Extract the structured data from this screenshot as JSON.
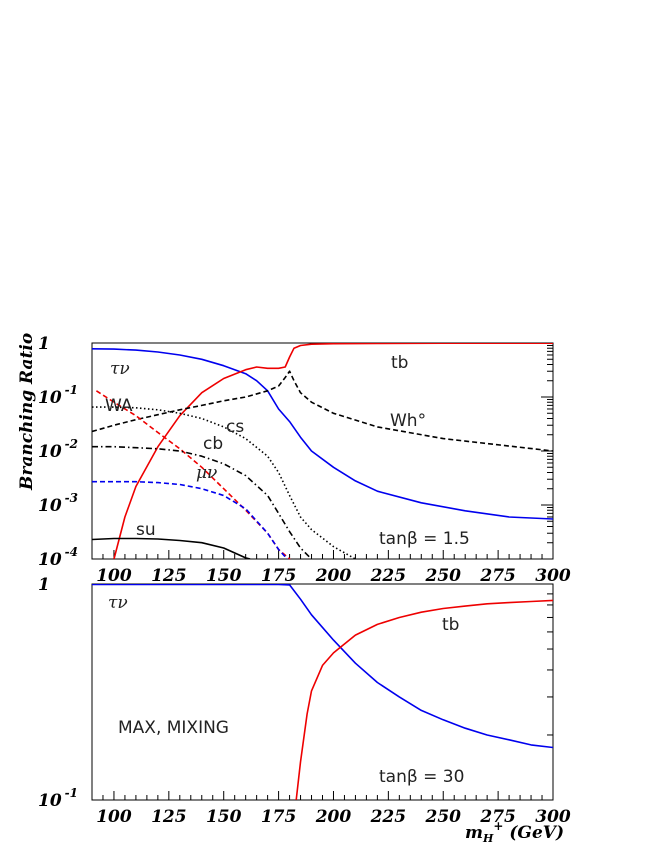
{
  "chart_data": [
    {
      "type": "line",
      "ylabel": "Branching Ratio",
      "y_scale": "log",
      "ylim": [
        0.0001,
        1
      ],
      "xlim": [
        90,
        300
      ],
      "x_ticks": [
        "100",
        "125",
        "150",
        "175",
        "200",
        "225",
        "250",
        "275",
        "300"
      ],
      "y_ticks": [
        {
          "base": "1",
          "exp": ""
        },
        {
          "base": "10",
          "exp": "-1"
        },
        {
          "base": "10",
          "exp": "-2"
        },
        {
          "base": "10",
          "exp": "-3"
        },
        {
          "base": "10",
          "exp": "-4"
        }
      ],
      "annotations": [
        "τν",
        "WA",
        "cb",
        "cs",
        "μν",
        "su",
        "tb",
        "Wh°",
        "tanβ = 1.5"
      ],
      "series": [
        {
          "name": "τν",
          "color": "#0000ee",
          "style": "solid",
          "x": [
            90,
            100,
            110,
            120,
            130,
            140,
            150,
            160,
            165,
            170,
            175,
            180,
            185,
            190,
            200,
            210,
            220,
            240,
            260,
            280,
            300
          ],
          "y": [
            0.78,
            0.77,
            0.74,
            0.68,
            0.6,
            0.5,
            0.38,
            0.27,
            0.2,
            0.13,
            0.06,
            0.035,
            0.018,
            0.01,
            0.005,
            0.0028,
            0.0018,
            0.0011,
            0.00078,
            0.0006,
            0.00055
          ]
        },
        {
          "name": "tb",
          "color": "#ee0000",
          "style": "solid",
          "x": [
            100,
            105,
            110,
            120,
            130,
            140,
            150,
            160,
            165,
            170,
            175,
            178,
            180,
            182,
            185,
            190,
            200,
            220,
            250,
            300
          ],
          "y": [
            0.0001,
            0.0006,
            0.0022,
            0.012,
            0.045,
            0.12,
            0.22,
            0.32,
            0.36,
            0.34,
            0.34,
            0.36,
            0.55,
            0.8,
            0.9,
            0.95,
            0.97,
            0.98,
            0.99,
            0.99
          ]
        },
        {
          "name": "Wh°",
          "color": "#000000",
          "style": "dashed",
          "x": [
            90,
            100,
            110,
            120,
            130,
            140,
            150,
            160,
            170,
            175,
            178,
            180,
            182,
            185,
            190,
            200,
            220,
            250,
            300
          ],
          "y": [
            0.023,
            0.03,
            0.038,
            0.047,
            0.058,
            0.07,
            0.085,
            0.1,
            0.13,
            0.16,
            0.23,
            0.3,
            0.2,
            0.12,
            0.08,
            0.05,
            0.028,
            0.017,
            0.01
          ]
        },
        {
          "name": "WA",
          "color": "#ee0000",
          "style": "dashed",
          "x": [
            92,
            100,
            110,
            120,
            130,
            140,
            150,
            160,
            170,
            175,
            180,
            182
          ],
          "y": [
            0.13,
            0.08,
            0.045,
            0.022,
            0.011,
            0.005,
            0.002,
            0.0008,
            0.0003,
            0.00015,
            0.0001,
            8e-05
          ]
        },
        {
          "name": "cs",
          "color": "#000000",
          "style": "dotted",
          "x": [
            90,
            100,
            110,
            120,
            130,
            140,
            150,
            160,
            170,
            175,
            180,
            185,
            190,
            200,
            210,
            215
          ],
          "y": [
            0.065,
            0.065,
            0.063,
            0.058,
            0.05,
            0.04,
            0.028,
            0.017,
            0.008,
            0.004,
            0.0015,
            0.0006,
            0.00035,
            0.00017,
            0.0001,
            8e-05
          ]
        },
        {
          "name": "cb",
          "color": "#000000",
          "style": "dashdot",
          "x": [
            90,
            100,
            110,
            120,
            130,
            140,
            150,
            160,
            170,
            175,
            180,
            185,
            190,
            195
          ],
          "y": [
            0.012,
            0.012,
            0.0115,
            0.011,
            0.01,
            0.008,
            0.0058,
            0.0035,
            0.0015,
            0.0007,
            0.00032,
            0.00016,
            0.0001,
            7e-05
          ]
        },
        {
          "name": "μν",
          "color": "#0000ee",
          "style": "dashed",
          "x": [
            90,
            100,
            110,
            120,
            130,
            140,
            150,
            160,
            170,
            175,
            180,
            182
          ],
          "y": [
            0.0027,
            0.0027,
            0.0027,
            0.0026,
            0.0024,
            0.002,
            0.0015,
            0.00085,
            0.0003,
            0.00015,
            9e-05,
            7e-05
          ]
        },
        {
          "name": "su",
          "color": "#000000",
          "style": "solid",
          "x": [
            90,
            100,
            110,
            120,
            130,
            140,
            150,
            160,
            162
          ],
          "y": [
            0.00023,
            0.00024,
            0.00024,
            0.000235,
            0.00022,
            0.0002,
            0.00016,
            0.000105,
            0.0001
          ]
        }
      ]
    },
    {
      "type": "line",
      "xlabel_main": "m",
      "xlabel_sub": "H",
      "xlabel_sup": "+",
      "xlabel_unit": " (GeV)",
      "y_scale": "log",
      "ylim": [
        0.1,
        1
      ],
      "xlim": [
        90,
        300
      ],
      "x_ticks": [
        "100",
        "125",
        "150",
        "175",
        "200",
        "225",
        "250",
        "275",
        "300"
      ],
      "y_ticks": [
        {
          "base": "1",
          "exp": ""
        },
        {
          "base": "10",
          "exp": "-1"
        }
      ],
      "annotations": [
        "τν",
        "tb",
        "MAX, MIXING",
        "tanβ = 30"
      ],
      "series": [
        {
          "name": "τν",
          "color": "#0000ee",
          "style": "solid",
          "x": [
            90,
            120,
            150,
            175,
            180,
            185,
            190,
            200,
            210,
            220,
            230,
            240,
            250,
            260,
            270,
            280,
            290,
            300
          ],
          "y": [
            0.995,
            0.995,
            0.995,
            0.995,
            0.99,
            0.85,
            0.72,
            0.55,
            0.43,
            0.35,
            0.3,
            0.26,
            0.235,
            0.215,
            0.2,
            0.19,
            0.18,
            0.175
          ]
        },
        {
          "name": "tb",
          "color": "#ee0000",
          "style": "solid",
          "x": [
            183,
            185,
            188,
            190,
            195,
            200,
            210,
            220,
            230,
            240,
            250,
            260,
            270,
            280,
            290,
            300
          ],
          "y": [
            0.1,
            0.15,
            0.25,
            0.32,
            0.42,
            0.48,
            0.58,
            0.65,
            0.7,
            0.74,
            0.77,
            0.79,
            0.81,
            0.82,
            0.83,
            0.84
          ]
        }
      ]
    }
  ]
}
